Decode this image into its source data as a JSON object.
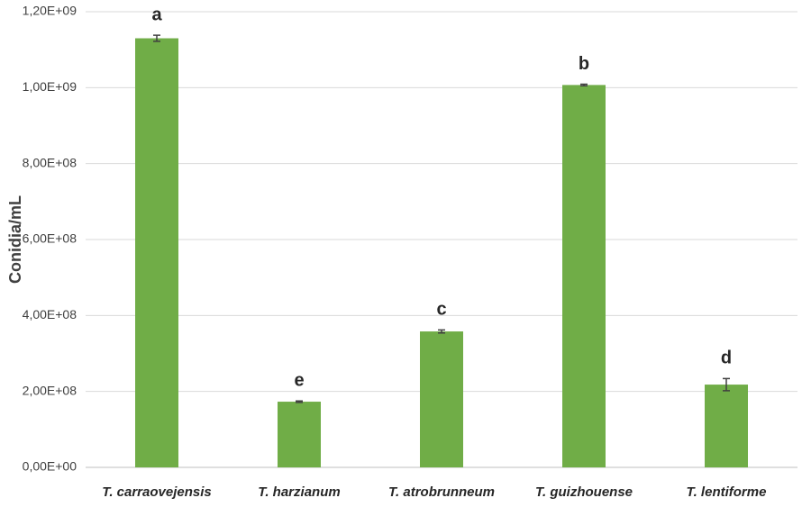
{
  "chart_data": {
    "type": "bar",
    "y_label": "Conidia/mL",
    "categories": [
      "T. carraovejensis",
      "T. harzianum",
      "T. atrobrunneum",
      "T. guizhouense",
      "T. lentiforme"
    ],
    "values": [
      1130000000,
      173000000,
      358000000,
      1007000000,
      218000000
    ],
    "errors": [
      8000000,
      2000000,
      4000000,
      2000000,
      16000000
    ],
    "annotations": [
      "a",
      "e",
      "c",
      "b",
      "d"
    ],
    "color": "#70ad47",
    "ylim": [
      0,
      1200000000
    ],
    "yticks": [
      {
        "value": 0,
        "label": "0,00E+00"
      },
      {
        "value": 200000000,
        "label": "2,00E+08"
      },
      {
        "value": 400000000,
        "label": "4,00E+08"
      },
      {
        "value": 600000000,
        "label": "6,00E+08"
      },
      {
        "value": 800000000,
        "label": "8,00E+08"
      },
      {
        "value": 1000000000,
        "label": "1,00E+09"
      },
      {
        "value": 1200000000,
        "label": "1,20E+09"
      }
    ],
    "grid": true
  }
}
